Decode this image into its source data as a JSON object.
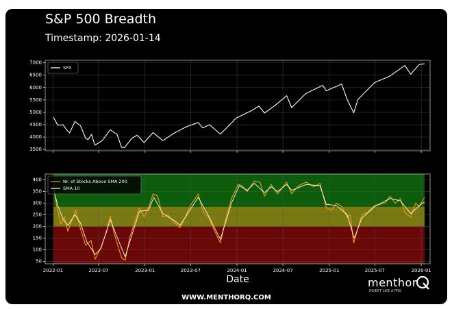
{
  "header": {
    "title": "S&P 500 Breadth",
    "subtitle": "Timestamp: 2026-01-14"
  },
  "footer": {
    "url": "WWW.MENTHORQ.COM",
    "brand_name": "menthor",
    "brand_tagline": "INVEST LIKE A PRO",
    "brand_q_icon": "q-logo-icon"
  },
  "colors": {
    "background": "#000000",
    "spx_line": "#ffffff",
    "above_sma200_line": "#ff9900",
    "sma10_line": "#ffffff",
    "zone_green": "#0b5d0b",
    "zone_yellow": "#7a7a12",
    "zone_red": "#6a0808",
    "axis_text": "#ffffff",
    "grid": "#555555"
  },
  "chart_data": [
    {
      "type": "line",
      "panel": "top",
      "ylim": [
        3450,
        7100
      ],
      "yticks": [
        3500,
        4000,
        4500,
        5000,
        5500,
        6000,
        6500,
        7000
      ],
      "grid": true,
      "legend_position": "top-left",
      "series": [
        {
          "name": "SPX",
          "points": [
            [
              "2022-01-03",
              4797
            ],
            [
              "2022-01-20",
              4480
            ],
            [
              "2022-02-10",
              4500
            ],
            [
              "2022-02-24",
              4290
            ],
            [
              "2022-03-08",
              4170
            ],
            [
              "2022-03-29",
              4630
            ],
            [
              "2022-04-20",
              4460
            ],
            [
              "2022-05-11",
              3940
            ],
            [
              "2022-05-20",
              3900
            ],
            [
              "2022-06-03",
              4110
            ],
            [
              "2022-06-16",
              3670
            ],
            [
              "2022-07-15",
              3860
            ],
            [
              "2022-08-16",
              4300
            ],
            [
              "2022-09-12",
              4110
            ],
            [
              "2022-09-30",
              3590
            ],
            [
              "2022-10-12",
              3580
            ],
            [
              "2022-11-10",
              3950
            ],
            [
              "2022-12-01",
              4080
            ],
            [
              "2022-12-28",
              3780
            ],
            [
              "2023-02-02",
              4180
            ],
            [
              "2023-03-13",
              3860
            ],
            [
              "2023-04-28",
              4170
            ],
            [
              "2023-06-15",
              4420
            ],
            [
              "2023-07-31",
              4590
            ],
            [
              "2023-08-18",
              4370
            ],
            [
              "2023-09-14",
              4500
            ],
            [
              "2023-10-27",
              4120
            ],
            [
              "2023-12-29",
              4770
            ],
            [
              "2024-02-28",
              5070
            ],
            [
              "2024-03-28",
              5250
            ],
            [
              "2024-04-19",
              4970
            ],
            [
              "2024-05-31",
              5280
            ],
            [
              "2024-07-16",
              5670
            ],
            [
              "2024-08-05",
              5190
            ],
            [
              "2024-09-30",
              5760
            ],
            [
              "2024-12-06",
              6090
            ],
            [
              "2024-12-20",
              5870
            ],
            [
              "2025-02-19",
              6140
            ],
            [
              "2025-03-13",
              5520
            ],
            [
              "2025-04-08",
              4980
            ],
            [
              "2025-04-25",
              5520
            ],
            [
              "2025-06-30",
              6200
            ],
            [
              "2025-08-29",
              6460
            ],
            [
              "2025-10-28",
              6890
            ],
            [
              "2025-11-20",
              6540
            ],
            [
              "2025-12-24",
              6930
            ],
            [
              "2026-01-14",
              6960
            ]
          ]
        }
      ]
    },
    {
      "type": "line",
      "panel": "bottom",
      "ylim": [
        40,
        425
      ],
      "yticks": [
        50,
        100,
        150,
        200,
        250,
        300,
        350,
        400
      ],
      "xlabel": "Date",
      "xticks": [
        "2022-01",
        "2022-07",
        "2023-01",
        "2023-07",
        "2024-01",
        "2024-07",
        "2025-01",
        "2025-07",
        "2026-01"
      ],
      "zones": [
        {
          "from": 0,
          "to": 200,
          "color": "#6a0808"
        },
        {
          "from": 200,
          "to": 285,
          "color": "#7a7a12"
        },
        {
          "from": 285,
          "to": 425,
          "color": "#0b5d0b"
        }
      ],
      "grid": true,
      "legend_position": "top-left",
      "series": [
        {
          "name": "Nr. of Stocks Above SMA 200",
          "points": [
            [
              "2022-01-03",
              380
            ],
            [
              "2022-01-15",
              290
            ],
            [
              "2022-02-01",
              210
            ],
            [
              "2022-02-15",
              240
            ],
            [
              "2022-03-01",
              180
            ],
            [
              "2022-03-15",
              220
            ],
            [
              "2022-04-01",
              270
            ],
            [
              "2022-04-20",
              190
            ],
            [
              "2022-05-10",
              120
            ],
            [
              "2022-06-01",
              140
            ],
            [
              "2022-06-17",
              60
            ],
            [
              "2022-07-10",
              110
            ],
            [
              "2022-08-01",
              175
            ],
            [
              "2022-08-16",
              245
            ],
            [
              "2022-09-01",
              170
            ],
            [
              "2022-09-20",
              100
            ],
            [
              "2022-10-01",
              65
            ],
            [
              "2022-10-14",
              55
            ],
            [
              "2022-11-01",
              150
            ],
            [
              "2022-11-20",
              215
            ],
            [
              "2022-12-10",
              280
            ],
            [
              "2022-12-28",
              240
            ],
            [
              "2023-01-15",
              280
            ],
            [
              "2023-02-02",
              340
            ],
            [
              "2023-02-20",
              330
            ],
            [
              "2023-03-13",
              240
            ],
            [
              "2023-04-01",
              250
            ],
            [
              "2023-04-28",
              215
            ],
            [
              "2023-05-20",
              195
            ],
            [
              "2023-06-10",
              240
            ],
            [
              "2023-06-30",
              290
            ],
            [
              "2023-07-31",
              340
            ],
            [
              "2023-08-20",
              260
            ],
            [
              "2023-09-10",
              240
            ],
            [
              "2023-09-30",
              190
            ],
            [
              "2023-10-27",
              130
            ],
            [
              "2023-11-15",
              220
            ],
            [
              "2023-12-10",
              320
            ],
            [
              "2024-01-05",
              380
            ],
            [
              "2024-01-20",
              375
            ],
            [
              "2024-02-10",
              350
            ],
            [
              "2024-03-10",
              395
            ],
            [
              "2024-04-01",
              390
            ],
            [
              "2024-04-19",
              330
            ],
            [
              "2024-05-15",
              380
            ],
            [
              "2024-06-10",
              340
            ],
            [
              "2024-07-16",
              390
            ],
            [
              "2024-08-05",
              340
            ],
            [
              "2024-09-01",
              375
            ],
            [
              "2024-10-01",
              390
            ],
            [
              "2024-11-01",
              370
            ],
            [
              "2024-11-25",
              385
            ],
            [
              "2024-12-20",
              280
            ],
            [
              "2025-01-10",
              270
            ],
            [
              "2025-01-30",
              300
            ],
            [
              "2025-02-20",
              285
            ],
            [
              "2025-03-13",
              240
            ],
            [
              "2025-03-25",
              250
            ],
            [
              "2025-04-08",
              130
            ],
            [
              "2025-04-20",
              175
            ],
            [
              "2025-05-10",
              250
            ],
            [
              "2025-06-01",
              260
            ],
            [
              "2025-06-30",
              290
            ],
            [
              "2025-07-20",
              295
            ],
            [
              "2025-08-10",
              300
            ],
            [
              "2025-08-30",
              330
            ],
            [
              "2025-09-20",
              300
            ],
            [
              "2025-10-10",
              320
            ],
            [
              "2025-10-28",
              260
            ],
            [
              "2025-11-20",
              240
            ],
            [
              "2025-12-10",
              300
            ],
            [
              "2025-12-24",
              285
            ],
            [
              "2026-01-14",
              325
            ]
          ]
        },
        {
          "name": "SMA 10",
          "points": [
            [
              "2022-01-03",
              360
            ],
            [
              "2022-01-20",
              290
            ],
            [
              "2022-02-10",
              230
            ],
            [
              "2022-03-01",
              205
            ],
            [
              "2022-03-29",
              250
            ],
            [
              "2022-04-20",
              215
            ],
            [
              "2022-05-15",
              135
            ],
            [
              "2022-06-17",
              80
            ],
            [
              "2022-07-10",
              105
            ],
            [
              "2022-08-16",
              230
            ],
            [
              "2022-09-10",
              160
            ],
            [
              "2022-10-14",
              70
            ],
            [
              "2022-11-15",
              180
            ],
            [
              "2022-12-10",
              265
            ],
            [
              "2023-01-15",
              270
            ],
            [
              "2023-02-05",
              325
            ],
            [
              "2023-03-13",
              255
            ],
            [
              "2023-04-28",
              225
            ],
            [
              "2023-05-20",
              205
            ],
            [
              "2023-07-31",
              325
            ],
            [
              "2023-09-10",
              245
            ],
            [
              "2023-10-27",
              145
            ],
            [
              "2023-12-10",
              300
            ],
            [
              "2024-01-10",
              375
            ],
            [
              "2024-02-10",
              355
            ],
            [
              "2024-03-10",
              385
            ],
            [
              "2024-04-19",
              345
            ],
            [
              "2024-05-15",
              370
            ],
            [
              "2024-06-10",
              350
            ],
            [
              "2024-07-16",
              380
            ],
            [
              "2024-08-05",
              355
            ],
            [
              "2024-10-01",
              380
            ],
            [
              "2024-11-25",
              375
            ],
            [
              "2024-12-20",
              295
            ],
            [
              "2025-01-30",
              290
            ],
            [
              "2025-03-13",
              250
            ],
            [
              "2025-04-10",
              150
            ],
            [
              "2025-05-10",
              235
            ],
            [
              "2025-06-30",
              285
            ],
            [
              "2025-08-30",
              320
            ],
            [
              "2025-10-10",
              310
            ],
            [
              "2025-11-20",
              255
            ],
            [
              "2025-12-24",
              290
            ],
            [
              "2026-01-14",
              305
            ]
          ]
        }
      ]
    }
  ]
}
